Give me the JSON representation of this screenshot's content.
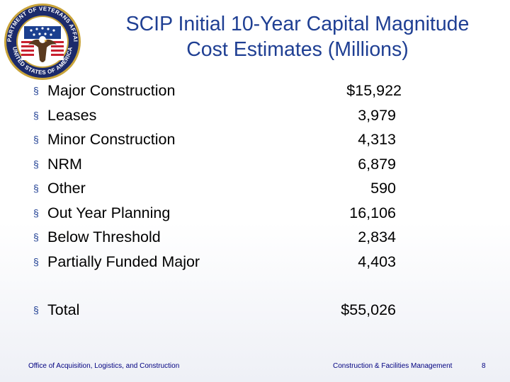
{
  "slide": {
    "title_line1": "SCIP Initial 10-Year Capital Magnitude",
    "title_line2": "Cost Estimates (Millions)",
    "bullet_glyph": "§",
    "seal": {
      "ring_top_text": "DEPARTMENT OF VETERANS AFFAIRS",
      "ring_bottom_text": "UNITED STATES OF AMERICA",
      "icon": "eagle-seal-icon"
    },
    "items": [
      {
        "label": "Major Construction",
        "value": "$15,922"
      },
      {
        "label": "Leases",
        "value": "3,979"
      },
      {
        "label": "Minor Construction",
        "value": "4,313"
      },
      {
        "label": "NRM",
        "value": "6,879"
      },
      {
        "label": "Other",
        "value": "590"
      },
      {
        "label": "Out Year Planning",
        "value": "16,106"
      },
      {
        "label": "Below Threshold",
        "value": "2,834"
      },
      {
        "label": "Partially Funded Major",
        "value": "4,403"
      }
    ],
    "total": {
      "label": "Total",
      "value": "$55,026"
    }
  },
  "footer": {
    "left": "Office of Acquisition, Logistics, and Construction",
    "right": "Construction & Facilities Management",
    "page_number": "8"
  },
  "colors": {
    "title": "#1f3f93",
    "footer": "#000080",
    "seal_navy": "#1b2a6b",
    "seal_gold": "#c9a43a"
  }
}
